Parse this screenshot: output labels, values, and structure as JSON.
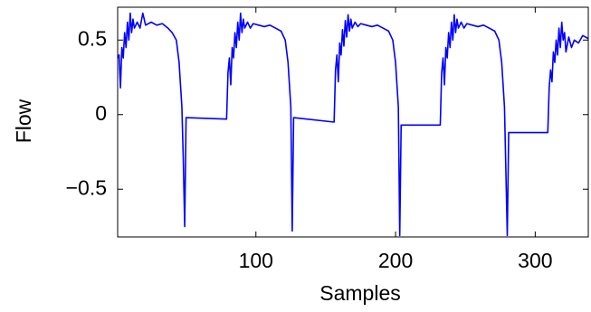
{
  "chart_data": {
    "type": "line",
    "x_label": "Samples",
    "y_label": "Flow",
    "x": [
      1,
      2,
      3,
      4,
      5,
      6,
      7,
      8,
      9,
      10,
      11,
      12,
      13,
      15,
      17,
      19,
      21,
      25,
      29,
      33,
      37,
      40,
      43,
      45,
      47,
      48,
      49,
      50,
      79,
      80,
      81,
      82,
      83,
      84,
      85,
      86,
      87,
      88,
      89,
      90,
      91,
      92,
      94,
      96,
      98,
      102,
      106,
      110,
      114,
      118,
      121,
      123,
      125,
      126,
      127,
      156,
      157,
      158,
      159,
      160,
      161,
      162,
      163,
      164,
      165,
      166,
      167,
      168,
      169,
      171,
      173,
      175,
      179,
      183,
      187,
      191,
      195,
      198,
      200,
      202,
      203,
      204,
      232,
      233,
      234,
      235,
      236,
      237,
      238,
      239,
      240,
      241,
      242,
      243,
      244,
      245,
      247,
      249,
      251,
      255,
      259,
      263,
      267,
      271,
      274,
      276,
      278,
      280,
      281,
      309,
      310,
      311,
      312,
      313,
      314,
      315,
      316,
      317,
      318,
      319,
      320,
      321,
      322,
      324,
      326,
      328,
      331,
      334,
      338
    ],
    "values": [
      0.38,
      0.4,
      0.18,
      0.45,
      0.38,
      0.55,
      0.45,
      0.62,
      0.5,
      0.68,
      0.55,
      0.64,
      0.58,
      0.62,
      0.58,
      0.68,
      0.6,
      0.62,
      0.6,
      0.61,
      0.58,
      0.55,
      0.5,
      0.35,
      0.05,
      -0.3,
      -0.75,
      -0.02,
      -0.03,
      0.28,
      0.38,
      0.2,
      0.45,
      0.38,
      0.55,
      0.45,
      0.62,
      0.5,
      0.68,
      0.55,
      0.64,
      0.58,
      0.62,
      0.58,
      0.61,
      0.6,
      0.59,
      0.6,
      0.58,
      0.56,
      0.5,
      0.35,
      0.05,
      -0.78,
      -0.02,
      -0.05,
      0.3,
      0.4,
      0.22,
      0.48,
      0.4,
      0.57,
      0.46,
      0.63,
      0.52,
      0.67,
      0.56,
      0.64,
      0.58,
      0.62,
      0.59,
      0.61,
      0.6,
      0.59,
      0.6,
      0.58,
      0.56,
      0.5,
      0.35,
      0.05,
      -0.81,
      -0.07,
      -0.07,
      0.28,
      0.38,
      0.2,
      0.45,
      0.38,
      0.55,
      0.45,
      0.62,
      0.5,
      0.67,
      0.55,
      0.64,
      0.58,
      0.62,
      0.58,
      0.61,
      0.6,
      0.59,
      0.6,
      0.58,
      0.56,
      0.5,
      0.35,
      0.05,
      -0.81,
      -0.12,
      -0.12,
      0.18,
      0.3,
      0.22,
      0.42,
      0.35,
      0.5,
      0.4,
      0.58,
      0.45,
      0.62,
      0.5,
      0.55,
      0.42,
      0.52,
      0.45,
      0.5,
      0.48,
      0.53,
      0.51
    ],
    "color": "#0000ff",
    "xlim": [
      1,
      338
    ],
    "ylim": [
      -0.82,
      0.72
    ],
    "xticks": [
      100,
      200,
      300
    ],
    "yticks": [
      {
        "value": -0.5,
        "label": "−0.5"
      },
      0,
      0.5
    ]
  }
}
